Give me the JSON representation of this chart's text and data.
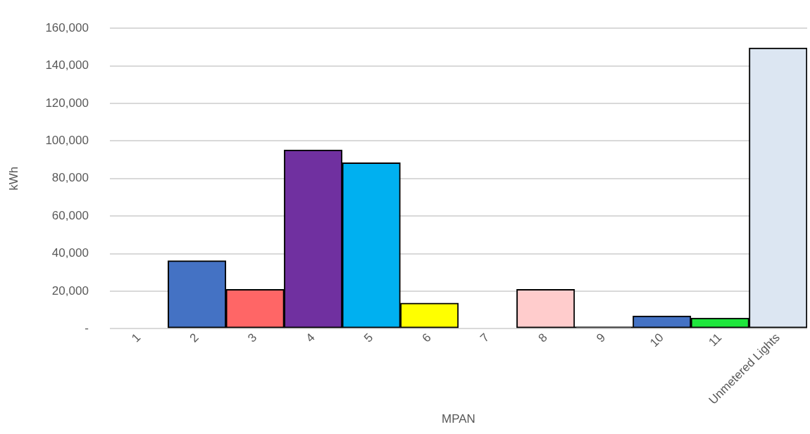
{
  "chart_data": {
    "type": "bar",
    "xlabel": "MPAN",
    "ylabel": "kWh",
    "categories": [
      "1",
      "2",
      "3",
      "4",
      "5",
      "6",
      "7",
      "8",
      "9",
      "10",
      "11",
      "Unmetered Lights"
    ],
    "values": [
      0,
      36200,
      21000,
      95200,
      88400,
      13700,
      0,
      21000,
      1000,
      6800,
      5700,
      149600
    ],
    "colors": [
      "#ffffff",
      "#4472c4",
      "#ff6666",
      "#7030a0",
      "#00b0f0",
      "#ffff00",
      "#ffffff",
      "#ffcccc",
      "#000000",
      "#4472c4",
      "#1ee63c",
      "#dce6f2"
    ],
    "ylim": [
      0,
      160000
    ],
    "yticks": [
      {
        "value": 0,
        "label": "-"
      },
      {
        "value": 20000,
        "label": "20,000"
      },
      {
        "value": 40000,
        "label": "40,000"
      },
      {
        "value": 60000,
        "label": "60,000"
      },
      {
        "value": 80000,
        "label": "80,000"
      },
      {
        "value": 100000,
        "label": "100,000"
      },
      {
        "value": 120000,
        "label": "120,000"
      },
      {
        "value": 140000,
        "label": "140,000"
      },
      {
        "value": 160000,
        "label": "160,000"
      }
    ],
    "grid": "y",
    "legend": false
  }
}
